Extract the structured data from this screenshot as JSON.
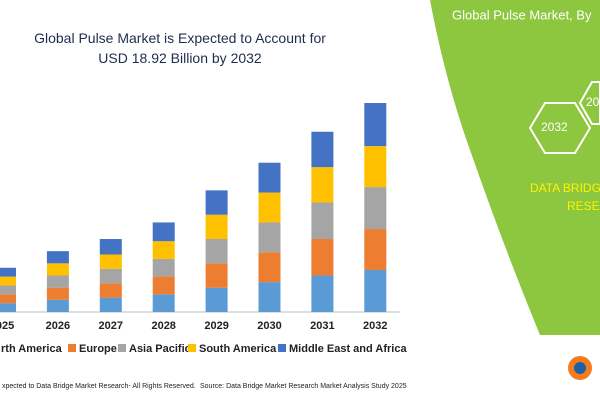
{
  "chart_data": {
    "type": "stacked-bar",
    "title": "Global Pulse Market is Expected to Account for USD 18.92 Billion by 2032",
    "categories": [
      "025",
      "2026",
      "2027",
      "2028",
      "2029",
      "2030",
      "2031",
      "2032"
    ],
    "series": [
      {
        "name": "rth America",
        "color": "#5b9bd5",
        "values": [
          0.8,
          1.1,
          1.3,
          1.6,
          2.2,
          2.7,
          3.3,
          3.8
        ]
      },
      {
        "name": "Europe",
        "color": "#ed7d31",
        "values": [
          0.8,
          1.1,
          1.3,
          1.6,
          2.2,
          2.7,
          3.3,
          3.7
        ]
      },
      {
        "name": "Asia Pacific",
        "color": "#a5a5a5",
        "values": [
          0.8,
          1.1,
          1.3,
          1.6,
          2.2,
          2.7,
          3.3,
          3.8
        ]
      },
      {
        "name": "South America",
        "color": "#ffc000",
        "values": [
          0.8,
          1.1,
          1.3,
          1.6,
          2.2,
          2.7,
          3.2,
          3.7
        ]
      },
      {
        "name": "Middle East and Africa",
        "color": "#4472c4",
        "values": [
          0.8,
          1.1,
          1.4,
          1.7,
          2.2,
          2.7,
          3.2,
          3.9
        ]
      }
    ]
  },
  "side_panel": {
    "title": "Global Pulse Market, By",
    "hexagons": [
      "2032",
      "20"
    ],
    "brand": [
      "DATA BRIDG",
      "RESEA"
    ]
  },
  "footer": {
    "left": "xpected to Data Bridge Market Research- All Rights Reserved.",
    "right": "Source: Data Bridge Market Research Market Analysis Study 2025"
  }
}
